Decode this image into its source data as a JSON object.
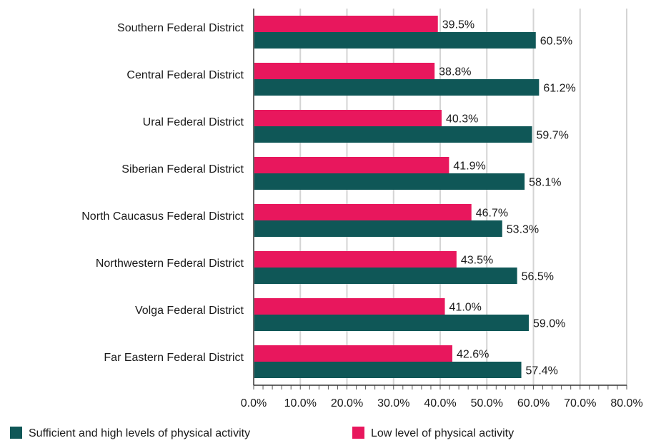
{
  "chart_data": {
    "type": "bar",
    "orientation": "horizontal",
    "categories": [
      "Southern Federal District",
      "Central Federal District",
      "Ural Federal District",
      "Siberian Federal District",
      "North Caucasus Federal District",
      "Northwestern Federal District",
      "Volga Federal District",
      "Far Eastern Federal District"
    ],
    "series": [
      {
        "name": "Low level of physical activity",
        "color": "#e8175d",
        "values": [
          39.5,
          38.8,
          40.3,
          41.9,
          46.7,
          43.5,
          41.0,
          42.6
        ],
        "labels": [
          "39.5%",
          "38.8%",
          "40.3%",
          "41.9%",
          "46.7%",
          "43.5%",
          "41.0%",
          "42.6%"
        ]
      },
      {
        "name": "Sufficient and high levels of physical activity",
        "color": "#0f5757",
        "values": [
          60.5,
          61.2,
          59.7,
          58.1,
          53.3,
          56.5,
          59.0,
          57.4
        ],
        "labels": [
          "60.5%",
          "61.2%",
          "59.7%",
          "58.1%",
          "53.3%",
          "56.5%",
          "59.0%",
          "57.4%"
        ]
      }
    ],
    "xlim": [
      0,
      80
    ],
    "xticks": [
      0,
      10,
      20,
      30,
      40,
      50,
      60,
      70,
      80
    ],
    "xtick_labels": [
      "0.0%",
      "10.0%",
      "20.0%",
      "30.0%",
      "40.0%",
      "50.0%",
      "60.0%",
      "70.0%",
      "80.0%"
    ],
    "grid": true,
    "legend_position": "bottom",
    "legend": [
      {
        "label": "Sufficient and high levels of physical activity",
        "color": "#0f5757"
      },
      {
        "label": "Low level of physical activity",
        "color": "#e8175d"
      }
    ]
  }
}
